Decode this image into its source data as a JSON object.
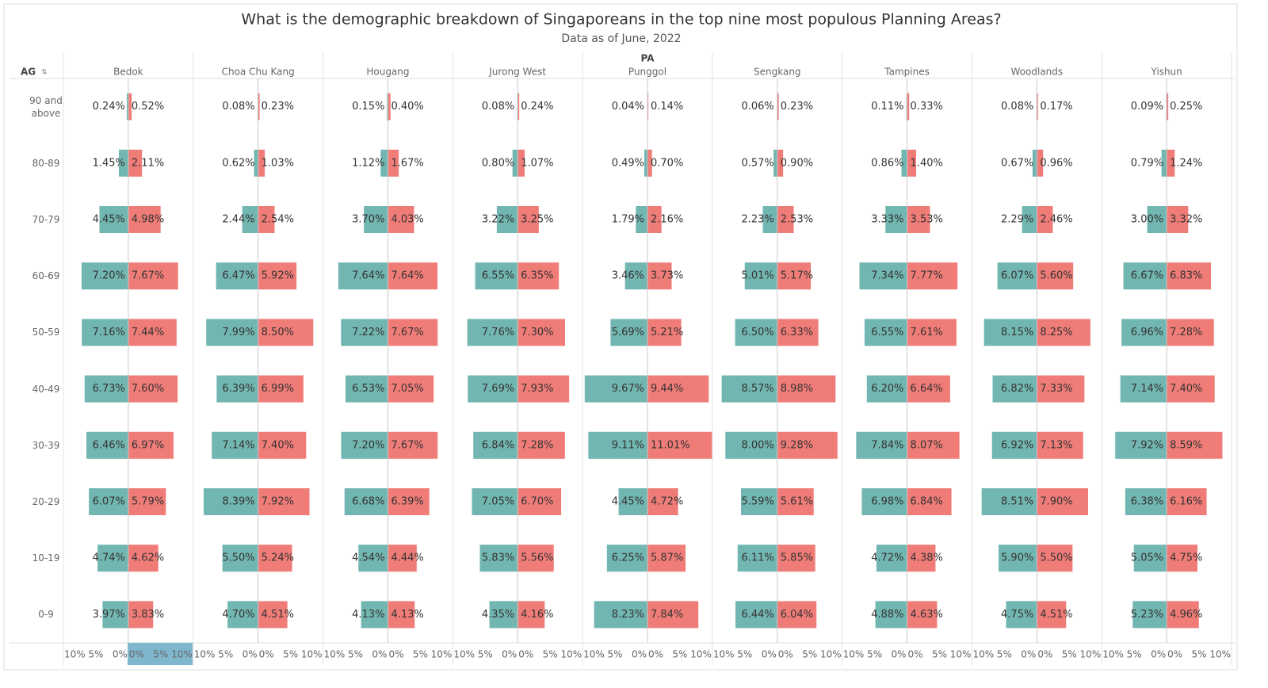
{
  "chart_data": {
    "type": "pyramid",
    "title": "What is the demographic breakdown of Singaporeans in the top nine most populous Planning Areas?",
    "subtitle": "Data as of June, 2022",
    "row_header": "AG",
    "column_header": "PA",
    "categories": [
      "90 and above",
      "80-89",
      "70-79",
      "60-69",
      "50-59",
      "40-49",
      "30-39",
      "20-29",
      "10-19",
      "0-9"
    ],
    "xlim": [
      0,
      10
    ],
    "xticks": [
      {
        "value": 10,
        "label": "10%"
      },
      {
        "value": 5,
        "label": "5%"
      },
      {
        "value": 0,
        "label": "0%"
      }
    ],
    "panels": [
      {
        "name": "Bedok",
        "series": [
          {
            "color": "#72b6b1",
            "values": [
              0.24,
              1.45,
              4.45,
              7.2,
              7.16,
              6.73,
              6.46,
              6.07,
              4.74,
              3.97
            ],
            "value_labels": [
              "0.24%",
              "1.45%",
              "4.45%",
              "7.20%",
              "7.16%",
              "6.73%",
              "6.46%",
              "6.07%",
              "4.74%",
              "3.97%"
            ]
          },
          {
            "color": "#f07c78",
            "values": [
              0.52,
              2.11,
              4.98,
              7.67,
              7.44,
              7.6,
              6.97,
              5.79,
              4.62,
              3.83
            ],
            "value_labels": [
              "0.52%",
              "2.11%",
              "4.98%",
              "7.67%",
              "7.44%",
              "7.60%",
              "6.97%",
              "5.79%",
              "4.62%",
              "3.83%"
            ]
          }
        ]
      },
      {
        "name": "Choa Chu Kang",
        "series": [
          {
            "color": "#72b6b1",
            "values": [
              0.08,
              0.62,
              2.44,
              6.47,
              7.99,
              6.39,
              7.14,
              8.39,
              5.5,
              4.7
            ],
            "value_labels": [
              "0.08%",
              "0.62%",
              "2.44%",
              "6.47%",
              "7.99%",
              "6.39%",
              "7.14%",
              "8.39%",
              "5.50%",
              "4.70%"
            ]
          },
          {
            "color": "#f07c78",
            "values": [
              0.23,
              1.03,
              2.54,
              5.92,
              8.5,
              6.99,
              7.4,
              7.92,
              5.24,
              4.51
            ],
            "value_labels": [
              "0.23%",
              "1.03%",
              "2.54%",
              "5.92%",
              "8.50%",
              "6.99%",
              "7.40%",
              "7.92%",
              "5.24%",
              "4.51%"
            ]
          }
        ]
      },
      {
        "name": "Hougang",
        "series": [
          {
            "color": "#72b6b1",
            "values": [
              0.15,
              1.12,
              3.7,
              7.64,
              7.22,
              6.53,
              7.2,
              6.68,
              4.54,
              4.13
            ],
            "value_labels": [
              "0.15%",
              "1.12%",
              "3.70%",
              "7.64%",
              "7.22%",
              "6.53%",
              "7.20%",
              "6.68%",
              "4.54%",
              "4.13%"
            ]
          },
          {
            "color": "#f07c78",
            "values": [
              0.4,
              1.67,
              4.03,
              7.64,
              7.67,
              7.05,
              7.67,
              6.39,
              4.44,
              4.13
            ],
            "value_labels": [
              "0.40%",
              "1.67%",
              "4.03%",
              "7.64%",
              "7.67%",
              "7.05%",
              "7.67%",
              "6.39%",
              "4.44%",
              "4.13%"
            ]
          }
        ]
      },
      {
        "name": "Jurong West",
        "series": [
          {
            "color": "#72b6b1",
            "values": [
              0.08,
              0.8,
              3.22,
              6.55,
              7.76,
              7.69,
              6.84,
              7.05,
              5.83,
              4.35
            ],
            "value_labels": [
              "0.08%",
              "0.80%",
              "3.22%",
              "6.55%",
              "7.76%",
              "7.69%",
              "6.84%",
              "7.05%",
              "5.83%",
              "4.35%"
            ]
          },
          {
            "color": "#f07c78",
            "values": [
              0.24,
              1.07,
              3.25,
              6.35,
              7.3,
              7.93,
              7.28,
              6.7,
              5.56,
              4.16
            ],
            "value_labels": [
              "0.24%",
              "1.07%",
              "3.25%",
              "6.35%",
              "7.30%",
              "7.93%",
              "7.28%",
              "6.70%",
              "5.56%",
              "4.16%"
            ]
          }
        ]
      },
      {
        "name": "Punggol",
        "series": [
          {
            "color": "#72b6b1",
            "values": [
              0.04,
              0.49,
              1.79,
              3.46,
              5.69,
              9.67,
              9.11,
              4.45,
              6.25,
              8.23
            ],
            "value_labels": [
              "0.04%",
              "0.49%",
              "1.79%",
              "3.46%",
              "5.69%",
              "9.67%",
              "9.11%",
              "4.45%",
              "6.25%",
              "8.23%"
            ]
          },
          {
            "color": "#f07c78",
            "values": [
              0.14,
              0.7,
              2.16,
              3.73,
              5.21,
              9.44,
              11.01,
              4.72,
              5.87,
              7.84
            ],
            "value_labels": [
              "0.14%",
              "0.70%",
              "2.16%",
              "3.73%",
              "5.21%",
              "9.44%",
              "11.01%",
              "4.72%",
              "5.87%",
              "7.84%"
            ]
          }
        ]
      },
      {
        "name": "Sengkang",
        "series": [
          {
            "color": "#72b6b1",
            "values": [
              0.06,
              0.57,
              2.23,
              5.01,
              6.5,
              8.57,
              8.0,
              5.59,
              6.11,
              6.44
            ],
            "value_labels": [
              "0.06%",
              "0.57%",
              "2.23%",
              "5.01%",
              "6.50%",
              "8.57%",
              "8.00%",
              "5.59%",
              "6.11%",
              "6.44%"
            ]
          },
          {
            "color": "#f07c78",
            "values": [
              0.23,
              0.9,
              2.53,
              5.17,
              6.33,
              8.98,
              9.28,
              5.61,
              5.85,
              6.04
            ],
            "value_labels": [
              "0.23%",
              "0.90%",
              "2.53%",
              "5.17%",
              "6.33%",
              "8.98%",
              "9.28%",
              "5.61%",
              "5.85%",
              "6.04%"
            ]
          }
        ]
      },
      {
        "name": "Tampines",
        "series": [
          {
            "color": "#72b6b1",
            "values": [
              0.11,
              0.86,
              3.33,
              7.34,
              6.55,
              6.2,
              7.84,
              6.98,
              4.72,
              4.88
            ],
            "value_labels": [
              "0.11%",
              "0.86%",
              "3.33%",
              "7.34%",
              "6.55%",
              "6.20%",
              "7.84%",
              "6.98%",
              "4.72%",
              "4.88%"
            ]
          },
          {
            "color": "#f07c78",
            "values": [
              0.33,
              1.4,
              3.53,
              7.77,
              7.61,
              6.64,
              8.07,
              6.84,
              4.38,
              4.63
            ],
            "value_labels": [
              "0.33%",
              "1.40%",
              "3.53%",
              "7.77%",
              "7.61%",
              "6.64%",
              "8.07%",
              "6.84%",
              "4.38%",
              "4.63%"
            ]
          }
        ]
      },
      {
        "name": "Woodlands",
        "series": [
          {
            "color": "#72b6b1",
            "values": [
              0.08,
              0.67,
              2.29,
              6.07,
              8.15,
              6.82,
              6.92,
              8.51,
              5.9,
              4.75
            ],
            "value_labels": [
              "0.08%",
              "0.67%",
              "2.29%",
              "6.07%",
              "8.15%",
              "6.82%",
              "6.92%",
              "8.51%",
              "5.90%",
              "4.75%"
            ]
          },
          {
            "color": "#f07c78",
            "values": [
              0.17,
              0.96,
              2.46,
              5.6,
              8.25,
              7.33,
              7.13,
              7.9,
              5.5,
              4.51
            ],
            "value_labels": [
              "0.17%",
              "0.96%",
              "2.46%",
              "5.60%",
              "8.25%",
              "7.33%",
              "7.13%",
              "7.90%",
              "5.50%",
              "4.51%"
            ]
          }
        ]
      },
      {
        "name": "Yishun",
        "series": [
          {
            "color": "#72b6b1",
            "values": [
              0.09,
              0.79,
              3.0,
              6.67,
              6.96,
              7.14,
              7.92,
              6.38,
              5.05,
              5.23
            ],
            "value_labels": [
              "0.09%",
              "0.79%",
              "3.00%",
              "6.67%",
              "6.96%",
              "7.14%",
              "7.92%",
              "6.38%",
              "5.05%",
              "5.23%"
            ]
          },
          {
            "color": "#f07c78",
            "values": [
              0.25,
              1.24,
              3.32,
              6.83,
              7.28,
              7.4,
              8.59,
              6.16,
              4.75,
              4.96
            ],
            "value_labels": [
              "0.25%",
              "1.24%",
              "3.32%",
              "6.83%",
              "7.28%",
              "7.40%",
              "8.59%",
              "6.16%",
              "4.75%",
              "4.96%"
            ]
          }
        ]
      }
    ]
  }
}
